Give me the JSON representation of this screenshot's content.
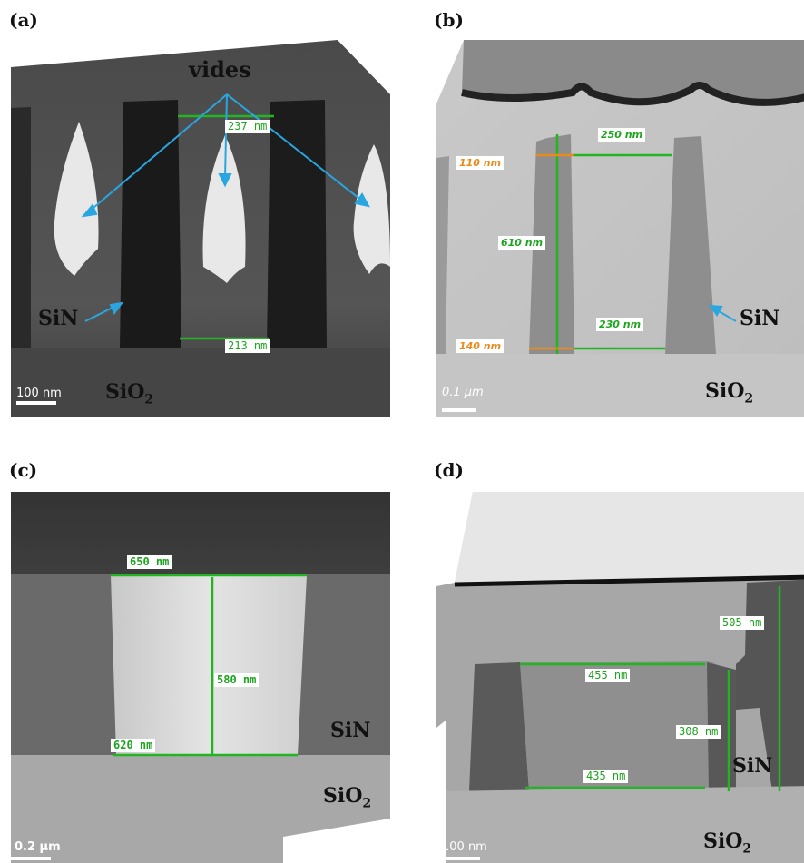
{
  "panels": {
    "a": {
      "label": "(a)",
      "callout": "vides",
      "top_width": "237 nm",
      "bottom_width": "213 nm",
      "material_top": "SiN",
      "material_bottom": "SiO",
      "material_bottom_sub": "2",
      "scale": "100 nm"
    },
    "b": {
      "label": "(b)",
      "top_gap": "250 nm",
      "top_width": "110 nm",
      "height": "610 nm",
      "bottom_gap": "230 nm",
      "bottom_width": "140 nm",
      "material_top": "SiN",
      "material_bottom": "SiO",
      "material_bottom_sub": "2",
      "scale": "0.1 μm"
    },
    "c": {
      "label": "(c)",
      "top_width": "650 nm",
      "height": "580 nm",
      "bottom_width": "620 nm",
      "material_top": "SiN",
      "material_bottom": "SiO",
      "material_bottom_sub": "2",
      "scale": "0.2 μm"
    },
    "d": {
      "label": "(d)",
      "top_width": "455 nm",
      "height_right": "505 nm",
      "height_inner": "308 nm",
      "bottom_width": "435 nm",
      "material_top": "SiN",
      "material_bottom": "SiO",
      "material_bottom_sub": "2",
      "scale": "100 nm"
    }
  },
  "colors": {
    "measure_line": "#22b522",
    "arrow": "#29a6e0",
    "orange": "#e88b1c"
  }
}
